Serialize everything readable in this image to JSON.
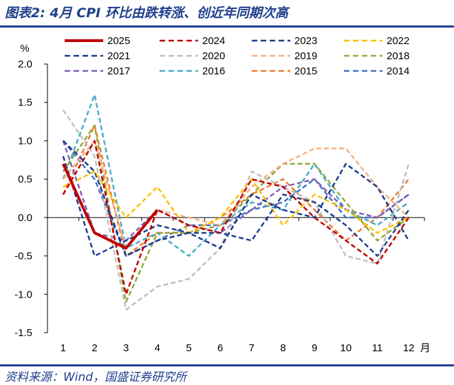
{
  "header": {
    "title": "图表2:  4月 CPI 环比由跌转涨、创近年同期次高"
  },
  "footer": {
    "source": "资料来源：Wind，国盛证券研究所"
  },
  "chart_data": {
    "type": "line",
    "ylabel": "%",
    "x_unit": "月",
    "ylim": [
      -1.5,
      2.0
    ],
    "yticks": [
      "2.0",
      "1.5",
      "1.0",
      "0.5",
      "0.0",
      "-0.5",
      "-1.0",
      "-1.5"
    ],
    "categories": [
      "1",
      "2",
      "3",
      "4",
      "5",
      "6",
      "7",
      "8",
      "9",
      "10",
      "11",
      "12"
    ],
    "grid": false,
    "legend_position": "top",
    "series": [
      {
        "name": "2025",
        "color": "#c00000",
        "style": "solid",
        "values": [
          0.7,
          -0.2,
          -0.4,
          0.1,
          null,
          null,
          null,
          null,
          null,
          null,
          null,
          null
        ]
      },
      {
        "name": "2024",
        "color": "#c00000",
        "style": "dashed",
        "values": [
          0.3,
          1.0,
          -1.0,
          0.1,
          -0.1,
          -0.2,
          0.5,
          0.4,
          0.0,
          -0.3,
          -0.6,
          0.0
        ]
      },
      {
        "name": "2023",
        "color": "#1f3f8c",
        "style": "dashed",
        "values": [
          0.8,
          -0.5,
          -0.3,
          -0.1,
          -0.2,
          -0.2,
          -0.3,
          0.3,
          0.2,
          -0.1,
          -0.5,
          0.1
        ]
      },
      {
        "name": "2022",
        "color": "#ffc000",
        "style": "dashed",
        "values": [
          0.4,
          0.6,
          0.0,
          0.4,
          -0.2,
          0.0,
          0.5,
          -0.1,
          0.3,
          0.1,
          -0.2,
          0.0
        ]
      },
      {
        "name": "2021",
        "color": "#1a3a8a",
        "style": "dashed",
        "values": [
          1.0,
          0.6,
          -0.5,
          -0.3,
          -0.2,
          -0.4,
          0.3,
          0.1,
          0.0,
          0.7,
          0.4,
          -0.3
        ]
      },
      {
        "name": "2020",
        "color": "#bfbfbf",
        "style": "dashed",
        "values": [
          1.4,
          0.8,
          -1.2,
          -0.9,
          -0.8,
          -0.4,
          0.6,
          0.4,
          0.2,
          -0.5,
          -0.6,
          0.7
        ]
      },
      {
        "name": "2019",
        "color": "#f4b183",
        "style": "dashed",
        "values": [
          0.5,
          1.0,
          -0.4,
          0.1,
          0.0,
          -0.1,
          0.4,
          0.7,
          0.9,
          0.9,
          0.4,
          0.0
        ]
      },
      {
        "name": "2018",
        "color": "#8faa3c",
        "style": "dashed",
        "values": [
          0.6,
          1.2,
          -1.1,
          -0.2,
          -0.2,
          -0.1,
          0.3,
          0.7,
          0.7,
          0.2,
          -0.3,
          0.0
        ]
      },
      {
        "name": "2017",
        "color": "#7f5fb8",
        "style": "dashed",
        "values": [
          1.0,
          -0.2,
          -0.3,
          0.1,
          -0.1,
          -0.2,
          0.1,
          0.4,
          0.5,
          0.1,
          0.0,
          0.3
        ]
      },
      {
        "name": "2016",
        "color": "#4bacc6",
        "style": "dashed",
        "values": [
          0.5,
          1.6,
          -0.4,
          -0.2,
          -0.5,
          -0.1,
          0.2,
          0.1,
          0.7,
          0.1,
          -0.1,
          0.2
        ]
      },
      {
        "name": "2015",
        "color": "#ed7d31",
        "style": "dashed",
        "values": [
          0.3,
          1.2,
          -0.5,
          -0.2,
          -0.2,
          0.0,
          0.3,
          0.5,
          0.1,
          -0.3,
          0.0,
          0.5
        ]
      },
      {
        "name": "2014",
        "color": "#4472c4",
        "style": "dashed",
        "values": [
          1.0,
          0.5,
          -0.5,
          -0.3,
          -0.1,
          -0.1,
          0.1,
          0.2,
          0.5,
          0.0,
          0.0,
          0.3
        ]
      }
    ]
  }
}
